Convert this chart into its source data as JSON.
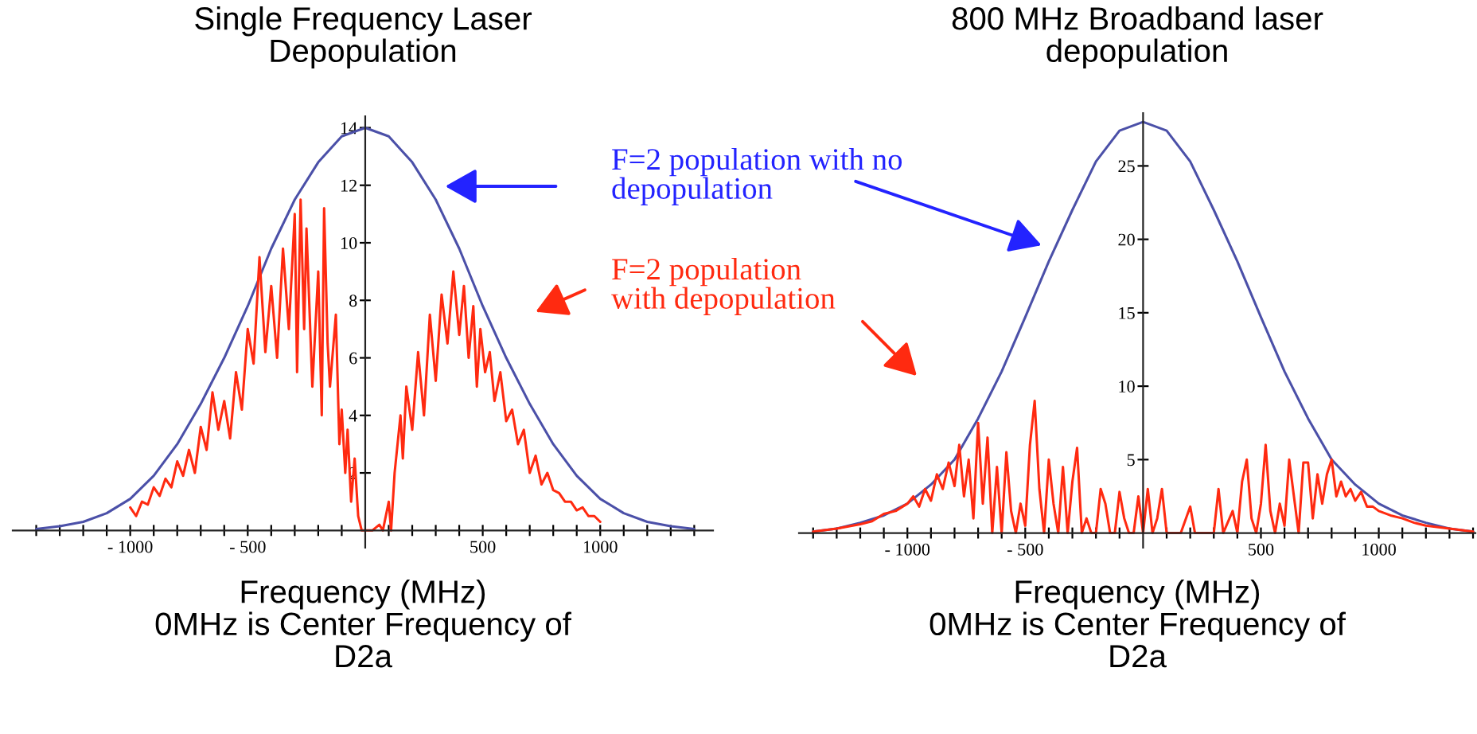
{
  "chart_data": [
    {
      "type": "line",
      "title": "Single Frequency Laser\nDepopulation",
      "xlabel": "Frequency (MHz)\n0MHz is Center Frequency of\nD2a",
      "xlim": [
        -1500,
        1480
      ],
      "ylim": [
        -0.6,
        14.4
      ],
      "xticks": [
        {
          "value": -1400,
          "label": null
        },
        {
          "value": -1300,
          "label": null
        },
        {
          "value": -1200,
          "label": null
        },
        {
          "value": -1100,
          "label": null
        },
        {
          "value": -1000,
          "label": "- 1000"
        },
        {
          "value": -900,
          "label": null
        },
        {
          "value": -800,
          "label": null
        },
        {
          "value": -700,
          "label": null
        },
        {
          "value": -600,
          "label": null
        },
        {
          "value": -500,
          "label": "- 500"
        },
        {
          "value": -400,
          "label": null
        },
        {
          "value": -300,
          "label": null
        },
        {
          "value": -200,
          "label": null
        },
        {
          "value": -100,
          "label": null
        },
        {
          "value": 100,
          "label": null
        },
        {
          "value": 200,
          "label": null
        },
        {
          "value": 300,
          "label": null
        },
        {
          "value": 400,
          "label": null
        },
        500,
        {
          "value": 600,
          "label": null
        },
        {
          "value": 700,
          "label": null
        },
        {
          "value": 800,
          "label": null
        },
        {
          "value": 900,
          "label": null
        },
        1000,
        {
          "value": 1100,
          "label": null
        },
        {
          "value": 1200,
          "label": null
        },
        {
          "value": 1300,
          "label": null
        },
        {
          "value": 1400,
          "label": null
        }
      ],
      "yticks": [
        2,
        4,
        6,
        8,
        10,
        12,
        14
      ],
      "grid": false,
      "annotations": [
        "F=2 population with no\ndepopulation",
        "F=2 population\nwith depopulation"
      ],
      "series": [
        {
          "color": "#4b50a8",
          "x": [
            -1400,
            -1300,
            -1200,
            -1100,
            -1000,
            -900,
            -800,
            -700,
            -600,
            -500,
            -400,
            -300,
            -200,
            -100,
            0,
            100,
            200,
            300,
            400,
            500,
            600,
            700,
            800,
            900,
            1000,
            1100,
            1200,
            1300,
            1400
          ],
          "values": [
            0.05,
            0.15,
            0.3,
            0.6,
            1.1,
            1.9,
            3.0,
            4.4,
            6.0,
            7.8,
            9.8,
            11.5,
            12.8,
            13.7,
            14,
            13.7,
            12.8,
            11.5,
            9.8,
            7.8,
            6.0,
            4.4,
            3.0,
            1.9,
            1.1,
            0.6,
            0.3,
            0.15,
            0.05
          ]
        },
        {
          "color": "#ff2a10",
          "x": [
            -1000,
            -975,
            -950,
            -925,
            -900,
            -875,
            -850,
            -825,
            -800,
            -775,
            -750,
            -725,
            -700,
            -675,
            -650,
            -625,
            -600,
            -575,
            -550,
            -525,
            -500,
            -475,
            -450,
            -425,
            -400,
            -375,
            -350,
            -325,
            -300,
            -290,
            -275,
            -260,
            -250,
            -225,
            -200,
            -185,
            -175,
            -160,
            -150,
            -125,
            -110,
            -100,
            -85,
            -75,
            -60,
            -45,
            -30,
            -15,
            0,
            30,
            60,
            75,
            100,
            110,
            125,
            150,
            160,
            175,
            200,
            225,
            250,
            275,
            300,
            325,
            350,
            375,
            400,
            420,
            440,
            460,
            475,
            490,
            510,
            530,
            550,
            575,
            600,
            625,
            650,
            675,
            700,
            725,
            750,
            775,
            800,
            825,
            850,
            875,
            900,
            925,
            950,
            975,
            1000
          ],
          "values": [
            0.8,
            0.5,
            1.0,
            0.9,
            1.5,
            1.2,
            1.8,
            1.5,
            2.4,
            1.9,
            2.8,
            2.0,
            3.6,
            2.8,
            4.8,
            3.5,
            4.5,
            3.2,
            5.5,
            4.2,
            7.0,
            5.8,
            9.5,
            6.2,
            8.5,
            6.0,
            9.8,
            7.0,
            11.0,
            5.5,
            11.5,
            7.0,
            10.5,
            5.0,
            9.0,
            4.0,
            11.2,
            6.5,
            5.0,
            7.5,
            3.0,
            4.2,
            2.0,
            3.5,
            1.0,
            2.5,
            0.5,
            0,
            0,
            0,
            0.2,
            0,
            1.0,
            0,
            2.0,
            4.0,
            2.5,
            5.0,
            3.5,
            6.2,
            4.0,
            7.5,
            5.2,
            8.2,
            6.5,
            9.0,
            6.8,
            8.5,
            6.0,
            7.8,
            5.0,
            7.0,
            5.5,
            6.2,
            4.5,
            5.5,
            3.8,
            4.2,
            3.0,
            3.5,
            2.0,
            2.6,
            1.6,
            2.0,
            1.4,
            1.3,
            1.0,
            1.0,
            0.7,
            0.8,
            0.5,
            0.5,
            0.3
          ]
        }
      ]
    },
    {
      "type": "line",
      "title": "800 MHz Broadband laser\ndepopulation",
      "xlabel": "Frequency (MHz)\n0MHz is Center Frequency of\nD2a",
      "xlim": [
        -1460,
        1410
      ],
      "ylim": [
        -1,
        28.6
      ],
      "xticks": [
        {
          "value": -1400,
          "label": null
        },
        {
          "value": -1300,
          "label": null
        },
        {
          "value": -1200,
          "label": null
        },
        {
          "value": -1100,
          "label": null
        },
        {
          "value": -1000,
          "label": "- 1000"
        },
        {
          "value": -900,
          "label": null
        },
        {
          "value": -800,
          "label": null
        },
        {
          "value": -700,
          "label": null
        },
        {
          "value": -600,
          "label": null
        },
        {
          "value": -500,
          "label": "- 500"
        },
        {
          "value": -400,
          "label": null
        },
        {
          "value": -300,
          "label": null
        },
        {
          "value": -200,
          "label": null
        },
        {
          "value": -100,
          "label": null
        },
        {
          "value": 100,
          "label": null
        },
        {
          "value": 200,
          "label": null
        },
        {
          "value": 300,
          "label": null
        },
        {
          "value": 400,
          "label": null
        },
        500,
        {
          "value": 600,
          "label": null
        },
        {
          "value": 700,
          "label": null
        },
        {
          "value": 800,
          "label": null
        },
        {
          "value": 900,
          "label": null
        },
        1000,
        {
          "value": 1100,
          "label": null
        },
        {
          "value": 1200,
          "label": null
        },
        {
          "value": 1300,
          "label": null
        },
        {
          "value": 1400,
          "label": null
        }
      ],
      "yticks": [
        5,
        10,
        15,
        20,
        25
      ],
      "grid": false,
      "series": [
        {
          "color": "#4b50a8",
          "x": [
            -1400,
            -1300,
            -1200,
            -1100,
            -1000,
            -900,
            -800,
            -700,
            -600,
            -500,
            -400,
            -300,
            -200,
            -100,
            0,
            100,
            200,
            300,
            400,
            500,
            600,
            700,
            800,
            900,
            1000,
            1100,
            1200,
            1300,
            1400
          ],
          "values": [
            0.1,
            0.3,
            0.7,
            1.2,
            2.0,
            3.3,
            5.0,
            7.8,
            11.0,
            14.7,
            18.5,
            22.0,
            25.3,
            27.4,
            28,
            27.4,
            25.3,
            22.0,
            18.5,
            14.7,
            11.0,
            7.8,
            5.0,
            3.3,
            2.0,
            1.2,
            0.7,
            0.3,
            0.1
          ]
        },
        {
          "color": "#ff2a10",
          "x": [
            -1400,
            -1300,
            -1200,
            -1150,
            -1100,
            -1050,
            -1000,
            -975,
            -950,
            -925,
            -900,
            -875,
            -850,
            -825,
            -800,
            -780,
            -760,
            -740,
            -720,
            -700,
            -680,
            -660,
            -640,
            -620,
            -600,
            -580,
            -560,
            -540,
            -520,
            -500,
            -480,
            -460,
            -440,
            -420,
            -400,
            -380,
            -360,
            -340,
            -320,
            -300,
            -280,
            -260,
            -240,
            -220,
            -200,
            -180,
            -160,
            -140,
            -120,
            -100,
            -80,
            -60,
            -40,
            -20,
            0,
            20,
            40,
            60,
            80,
            100,
            120,
            160,
            200,
            220,
            260,
            300,
            320,
            340,
            380,
            400,
            420,
            440,
            460,
            480,
            500,
            520,
            540,
            560,
            580,
            600,
            620,
            640,
            660,
            680,
            700,
            720,
            740,
            760,
            780,
            800,
            820,
            840,
            860,
            880,
            900,
            925,
            950,
            975,
            1000,
            1050,
            1100,
            1150,
            1200,
            1300,
            1400
          ],
          "values": [
            0.1,
            0.3,
            0.6,
            0.8,
            1.3,
            1.5,
            2.0,
            2.5,
            1.8,
            3.0,
            2.2,
            4.0,
            3.0,
            4.8,
            3.2,
            6.0,
            2.5,
            5.0,
            1.0,
            7.5,
            2.0,
            6.5,
            0,
            4.5,
            0,
            5.5,
            1.5,
            0,
            2.0,
            0.5,
            6.0,
            9.0,
            3.0,
            0,
            5.0,
            2.0,
            0,
            4.5,
            0,
            3.5,
            5.8,
            0,
            1.0,
            0,
            0,
            3.0,
            2.0,
            0,
            0,
            2.8,
            1.0,
            0,
            0,
            2.5,
            0,
            3.0,
            0,
            1.0,
            3.0,
            0,
            0,
            0,
            1.8,
            0,
            0,
            0,
            3.0,
            0,
            1.5,
            0,
            3.5,
            5.0,
            1.0,
            0,
            2.0,
            6.0,
            1.5,
            0,
            2.0,
            0.5,
            5.0,
            2.5,
            0,
            4.8,
            4.8,
            1.0,
            4.0,
            2.0,
            4.0,
            5.0,
            2.5,
            3.5,
            2.5,
            3.0,
            2.2,
            2.8,
            1.8,
            1.8,
            1.5,
            1.2,
            1.0,
            0.7,
            0.5,
            0.3,
            0.1
          ]
        }
      ]
    }
  ]
}
